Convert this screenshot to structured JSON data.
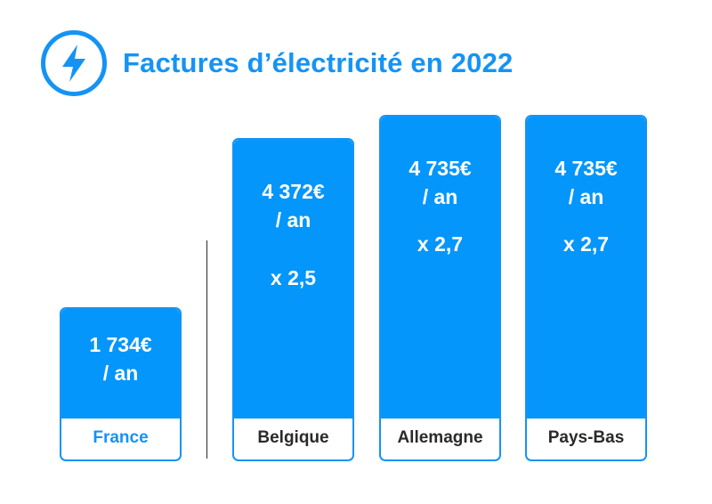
{
  "header": {
    "title": "Factures d’électricité en 2022",
    "icon": "lightning-bolt-icon",
    "accent_color": "#1593f5"
  },
  "chart_data": {
    "type": "bar",
    "title": "Factures d’électricité en 2022",
    "unit": "€ / an",
    "categories": [
      "France",
      "Belgique",
      "Allemagne",
      "Pays-Bas"
    ],
    "values": [
      1734,
      4372,
      4735,
      4735
    ],
    "value_labels": [
      "1 734€",
      "4 372€",
      "4 735€",
      "4 735€"
    ],
    "per_label": "/ an",
    "multipliers": [
      "",
      "x 2,5",
      "x 2,7",
      "x 2,7"
    ],
    "highlight_category": "France",
    "ylim": [
      0,
      4735
    ],
    "grid": false,
    "bar_color": "#0596fb"
  }
}
